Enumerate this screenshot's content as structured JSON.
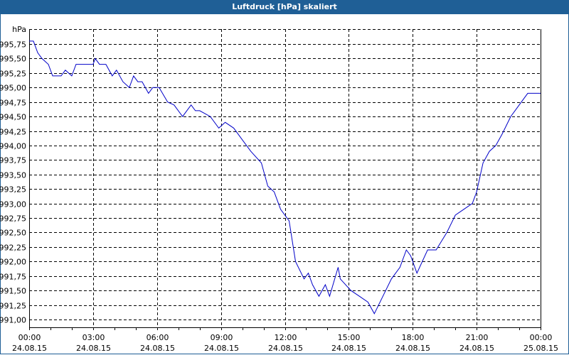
{
  "window": {
    "title": "Luftdruck [hPa] skaliert"
  },
  "chart_data": {
    "type": "line",
    "title": "Luftdruck [hPa] skaliert",
    "xlabel": "",
    "ylabel": "hPa",
    "ylim": [
      991.0,
      995.75
    ],
    "y_ticks": [
      "995,75",
      "995,50",
      "995,25",
      "995,00",
      "994,75",
      "994,50",
      "994,25",
      "994,00",
      "993,75",
      "993,50",
      "993,25",
      "993,00",
      "992,75",
      "992,50",
      "992,25",
      "992,00",
      "991,75",
      "991,50",
      "991,25",
      "991,00"
    ],
    "x_ticks": [
      {
        "time": "00:00",
        "date": "24.08.15"
      },
      {
        "time": "03:00",
        "date": "24.08.15"
      },
      {
        "time": "06:00",
        "date": "24.08.15"
      },
      {
        "time": "09:00",
        "date": "24.08.15"
      },
      {
        "time": "12:00",
        "date": "24.08.15"
      },
      {
        "time": "15:00",
        "date": "24.08.15"
      },
      {
        "time": "18:00",
        "date": "24.08.15"
      },
      {
        "time": "21:00",
        "date": "24.08.15"
      },
      {
        "time": "00:00",
        "date": "25.08.15"
      }
    ],
    "grid": true,
    "legend": "none",
    "series": [
      {
        "name": "Luftdruck",
        "color": "#0000c8",
        "x_hours": [
          0,
          0.2,
          0.4,
          0.6,
          0.9,
          1.1,
          1.3,
          1.5,
          1.7,
          2.0,
          2.2,
          2.5,
          2.7,
          3.0,
          3.1,
          3.3,
          3.6,
          3.9,
          4.1,
          4.4,
          4.7,
          4.9,
          5.1,
          5.3,
          5.6,
          5.8,
          6.1,
          6.5,
          6.8,
          7.2,
          7.4,
          7.6,
          7.8,
          8.0,
          8.5,
          8.9,
          9.2,
          9.6,
          10.0,
          10.4,
          10.9,
          11.2,
          11.5,
          11.8,
          12.2,
          12.5,
          12.9,
          13.1,
          13.3,
          13.6,
          13.9,
          14.1,
          14.5,
          14.6,
          15.1,
          15.5,
          15.9,
          16.2,
          16.6,
          17.0,
          17.4,
          17.7,
          17.9,
          18.2,
          18.7,
          19.1,
          19.6,
          20.0,
          20.4,
          20.8,
          21.0,
          21.3,
          21.6,
          21.9,
          22.2,
          22.6,
          22.8,
          23.1,
          23.4,
          23.7,
          24.0
        ],
        "values": [
          995.8,
          995.8,
          995.6,
          995.5,
          995.4,
          995.2,
          995.2,
          995.2,
          995.3,
          995.2,
          995.4,
          995.4,
          995.4,
          995.4,
          995.5,
          995.4,
          995.4,
          995.2,
          995.3,
          995.1,
          995.0,
          995.2,
          995.1,
          995.1,
          994.9,
          995.0,
          995.0,
          994.75,
          994.7,
          994.5,
          994.6,
          994.7,
          994.6,
          994.6,
          994.5,
          994.3,
          994.4,
          994.3,
          994.1,
          993.9,
          993.7,
          993.3,
          993.2,
          992.9,
          992.7,
          992.0,
          991.7,
          991.8,
          991.6,
          991.4,
          991.6,
          991.4,
          991.9,
          991.7,
          991.5,
          991.4,
          991.3,
          991.1,
          991.4,
          991.7,
          991.9,
          992.2,
          992.1,
          991.8,
          992.2,
          992.2,
          992.5,
          992.8,
          992.9,
          993.0,
          993.2,
          993.7,
          993.9,
          994.0,
          994.2,
          994.5,
          994.6,
          994.75,
          994.9,
          994.9,
          994.9
        ]
      }
    ]
  }
}
